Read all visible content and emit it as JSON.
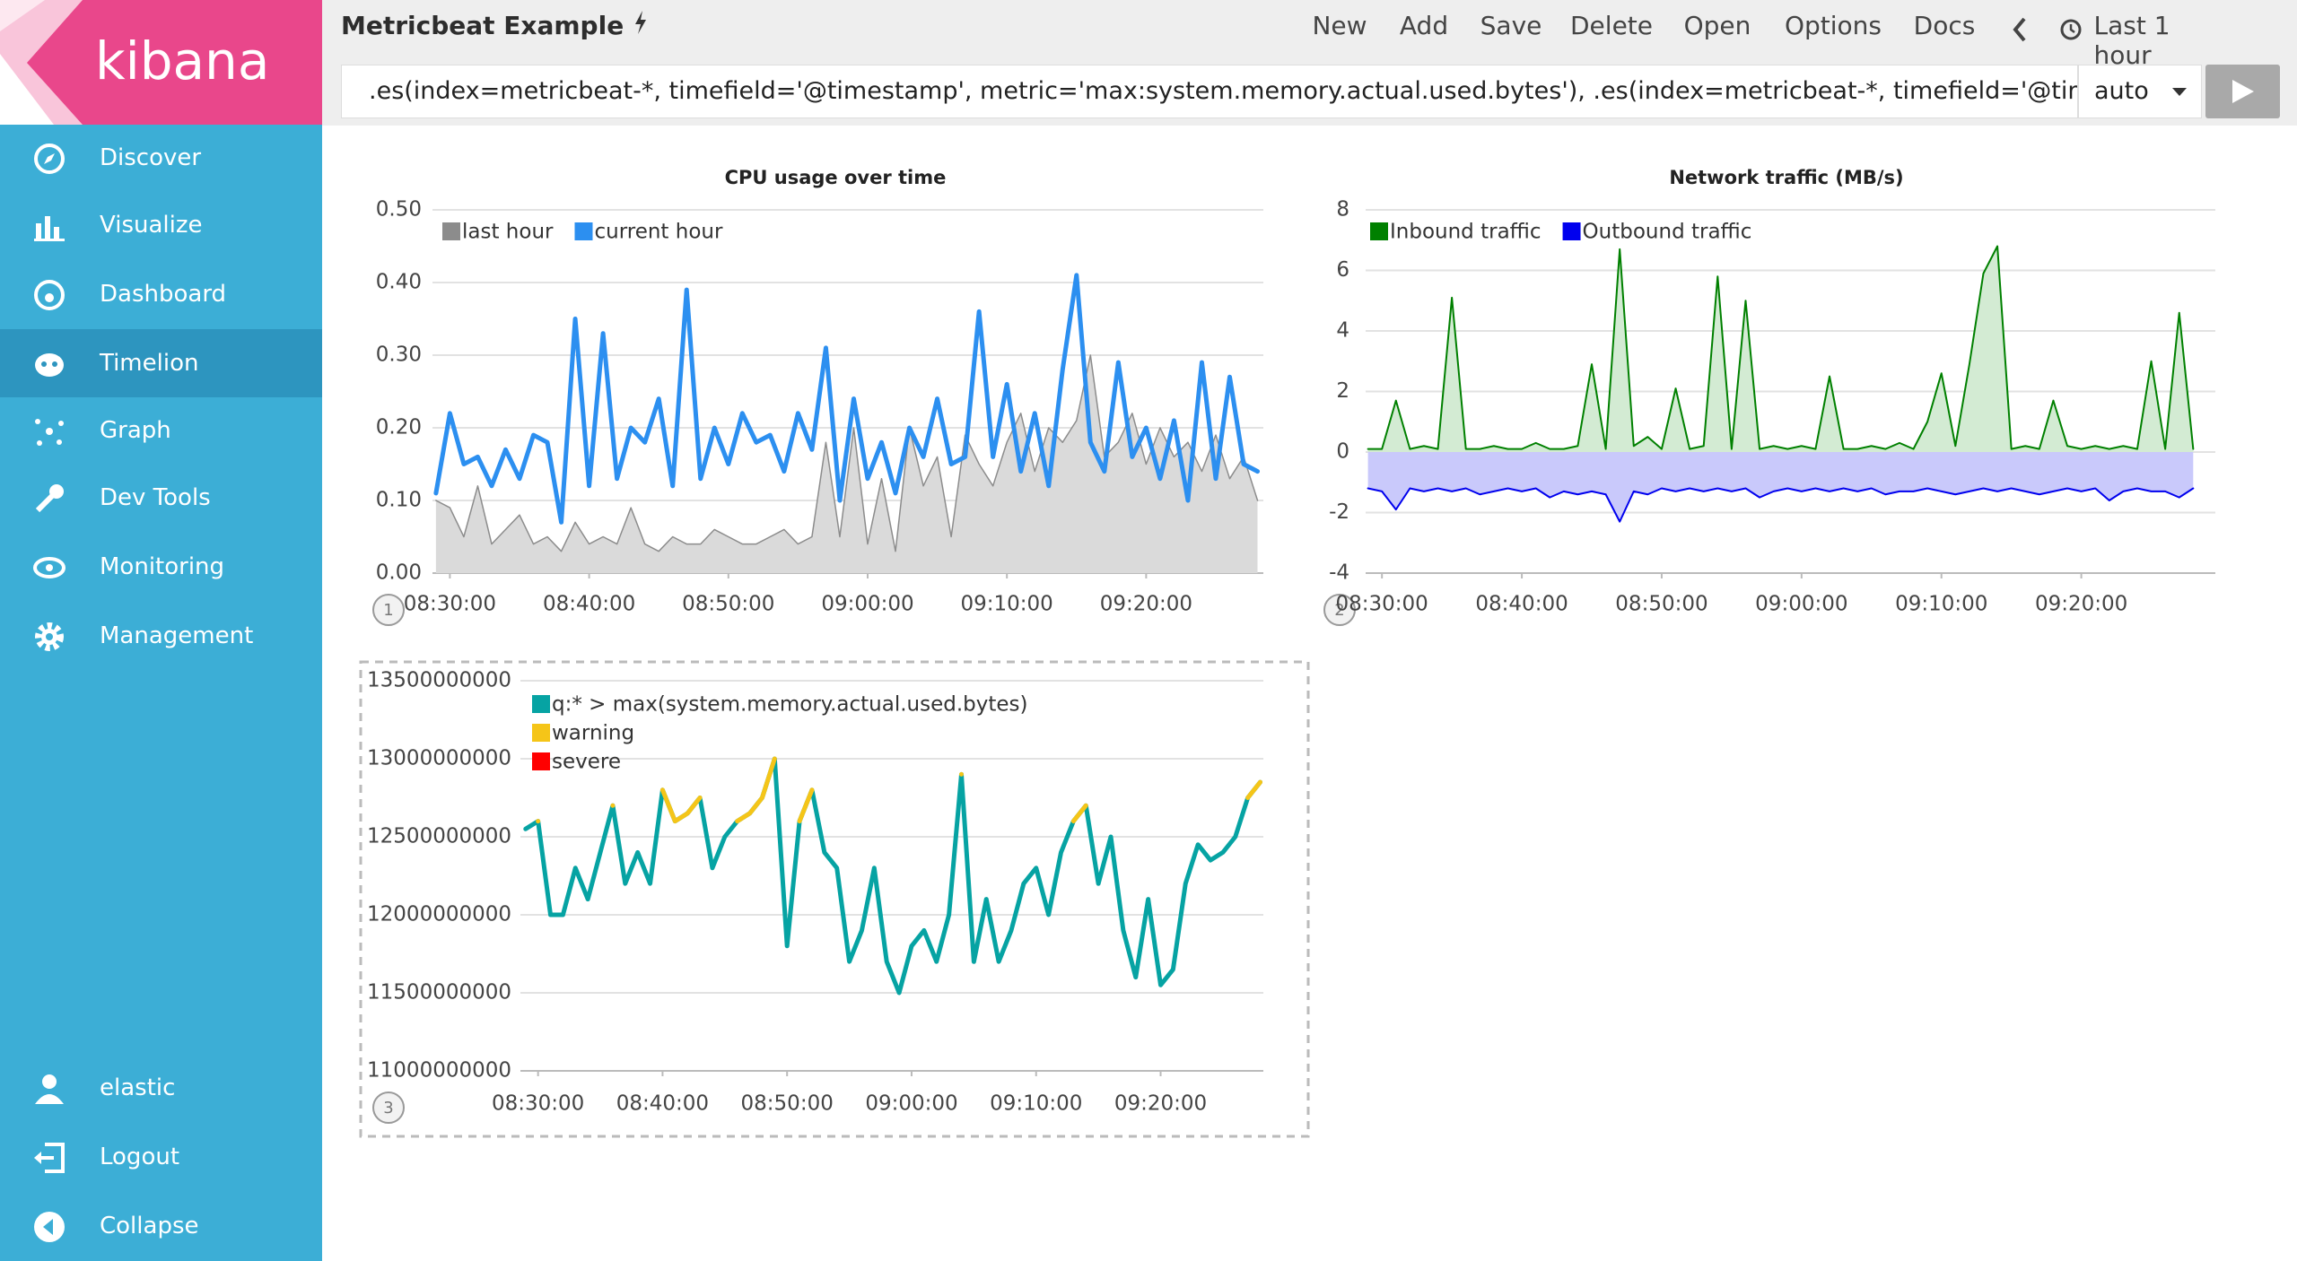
{
  "sidebar": {
    "brand": "kibana",
    "items": [
      "Discover",
      "Visualize",
      "Dashboard",
      "Timelion",
      "Graph",
      "Dev Tools",
      "Monitoring",
      "Management"
    ],
    "footer_items": [
      "elastic",
      "Logout",
      "Collapse"
    ]
  },
  "toolbar": {
    "title": "Metricbeat Example",
    "buttons": [
      "New",
      "Add",
      "Save",
      "Delete",
      "Open",
      "Options",
      "Docs"
    ],
    "time_range": "Last 1 hour",
    "query": ".es(index=metricbeat-*, timefield='@timestamp', metric='max:system.memory.actual.used.bytes'), .es(index=metricbeat-*, timefield='@timestan",
    "interval": "auto"
  },
  "panel_numbers": [
    "1",
    "2",
    "3"
  ],
  "chart_data": [
    {
      "type": "line",
      "title": "CPU usage over time",
      "legend": "top-left",
      "grid": true,
      "x": [
        "08:29:00",
        "08:30:00",
        "08:31:00",
        "08:32:00",
        "08:33:00",
        "08:34:00",
        "08:35:00",
        "08:36:00",
        "08:37:00",
        "08:38:00",
        "08:39:00",
        "08:40:00",
        "08:41:00",
        "08:42:00",
        "08:43:00",
        "08:44:00",
        "08:45:00",
        "08:46:00",
        "08:47:00",
        "08:48:00",
        "08:49:00",
        "08:50:00",
        "08:51:00",
        "08:52:00",
        "08:53:00",
        "08:54:00",
        "08:55:00",
        "08:56:00",
        "08:57:00",
        "08:58:00",
        "08:59:00",
        "09:00:00",
        "09:01:00",
        "09:02:00",
        "09:03:00",
        "09:04:00",
        "09:05:00",
        "09:06:00",
        "09:07:00",
        "09:08:00",
        "09:09:00",
        "09:10:00",
        "09:11:00",
        "09:12:00",
        "09:13:00",
        "09:14:00",
        "09:15:00",
        "09:16:00",
        "09:17:00",
        "09:18:00",
        "09:19:00",
        "09:20:00",
        "09:21:00",
        "09:22:00",
        "09:23:00",
        "09:24:00",
        "09:25:00",
        "09:26:00",
        "09:27:00",
        "09:28:00"
      ],
      "xlim": [
        "08:28:45",
        "09:28:25"
      ],
      "xticks": [
        "08:30:00",
        "08:40:00",
        "08:50:00",
        "09:00:00",
        "09:10:00",
        "09:20:00"
      ],
      "ylim": [
        0,
        0.5
      ],
      "yticks": [
        {
          "value": 0,
          "label": "0.00"
        },
        {
          "value": 0.1,
          "label": "0.10"
        },
        {
          "value": 0.2,
          "label": "0.20"
        },
        {
          "value": 0.3,
          "label": "0.30"
        },
        {
          "value": 0.4,
          "label": "0.40"
        },
        {
          "value": 0.5,
          "label": "0.50"
        }
      ],
      "series": [
        {
          "name": "last hour",
          "color": "#8c8c8c",
          "fill": "#dadada",
          "width": 1.5,
          "values": [
            0.1,
            0.09,
            0.05,
            0.12,
            0.04,
            0.06,
            0.08,
            0.04,
            0.05,
            0.03,
            0.07,
            0.04,
            0.05,
            0.04,
            0.09,
            0.04,
            0.03,
            0.05,
            0.04,
            0.04,
            0.06,
            0.05,
            0.04,
            0.04,
            0.05,
            0.06,
            0.04,
            0.05,
            0.18,
            0.05,
            0.2,
            0.04,
            0.13,
            0.03,
            0.2,
            0.12,
            0.16,
            0.05,
            0.19,
            0.15,
            0.12,
            0.18,
            0.22,
            0.14,
            0.2,
            0.18,
            0.21,
            0.3,
            0.16,
            0.18,
            0.22,
            0.15,
            0.2,
            0.16,
            0.18,
            0.14,
            0.19,
            0.13,
            0.16,
            0.1
          ]
        },
        {
          "name": "current hour",
          "color": "#2c8ff0",
          "width": 5,
          "values": [
            0.11,
            0.22,
            0.15,
            0.16,
            0.12,
            0.17,
            0.13,
            0.19,
            0.18,
            0.07,
            0.35,
            0.12,
            0.33,
            0.13,
            0.2,
            0.18,
            0.24,
            0.12,
            0.39,
            0.13,
            0.2,
            0.15,
            0.22,
            0.18,
            0.19,
            0.14,
            0.22,
            0.17,
            0.31,
            0.1,
            0.24,
            0.13,
            0.18,
            0.11,
            0.2,
            0.16,
            0.24,
            0.15,
            0.16,
            0.36,
            0.16,
            0.26,
            0.14,
            0.22,
            0.12,
            0.28,
            0.41,
            0.18,
            0.14,
            0.29,
            0.16,
            0.2,
            0.13,
            0.21,
            0.1,
            0.29,
            0.13,
            0.27,
            0.15,
            0.14
          ]
        }
      ]
    },
    {
      "type": "line",
      "title": "Network traffic (MB/s)",
      "legend": "top-left",
      "grid": true,
      "x": [
        "08:29:00",
        "08:30:00",
        "08:31:00",
        "08:32:00",
        "08:33:00",
        "08:34:00",
        "08:35:00",
        "08:36:00",
        "08:37:00",
        "08:38:00",
        "08:39:00",
        "08:40:00",
        "08:41:00",
        "08:42:00",
        "08:43:00",
        "08:44:00",
        "08:45:00",
        "08:46:00",
        "08:47:00",
        "08:48:00",
        "08:49:00",
        "08:50:00",
        "08:51:00",
        "08:52:00",
        "08:53:00",
        "08:54:00",
        "08:55:00",
        "08:56:00",
        "08:57:00",
        "08:58:00",
        "08:59:00",
        "09:00:00",
        "09:01:00",
        "09:02:00",
        "09:03:00",
        "09:04:00",
        "09:05:00",
        "09:06:00",
        "09:07:00",
        "09:08:00",
        "09:09:00",
        "09:10:00",
        "09:11:00",
        "09:12:00",
        "09:13:00",
        "09:14:00",
        "09:15:00",
        "09:16:00",
        "09:17:00",
        "09:18:00",
        "09:19:00",
        "09:20:00",
        "09:21:00",
        "09:22:00",
        "09:23:00",
        "09:24:00",
        "09:25:00",
        "09:26:00",
        "09:27:00",
        "09:28:00"
      ],
      "xlim": [
        "08:28:50",
        "09:29:35"
      ],
      "xticks": [
        "08:30:00",
        "08:40:00",
        "08:50:00",
        "09:00:00",
        "09:10:00",
        "09:20:00"
      ],
      "ylim": [
        -4,
        8
      ],
      "yticks": [
        -4,
        -2,
        0,
        2,
        4,
        6,
        8
      ],
      "series": [
        {
          "name": "Inbound traffic",
          "color": "#008000",
          "fill": "#d3ebd3",
          "width": 2,
          "values": [
            0.1,
            0.1,
            1.7,
            0.1,
            0.2,
            0.1,
            5.1,
            0.1,
            0.1,
            0.2,
            0.1,
            0.1,
            0.3,
            0.1,
            0.1,
            0.2,
            2.9,
            0.1,
            6.7,
            0.2,
            0.5,
            0.1,
            2.1,
            0.1,
            0.2,
            5.8,
            0.1,
            5.0,
            0.1,
            0.2,
            0.1,
            0.2,
            0.1,
            2.5,
            0.1,
            0.1,
            0.2,
            0.1,
            0.3,
            0.1,
            1.0,
            2.6,
            0.2,
            2.9,
            5.9,
            6.8,
            0.1,
            0.2,
            0.1,
            1.7,
            0.2,
            0.1,
            0.2,
            0.1,
            0.2,
            0.1,
            3.0,
            0.1,
            4.6,
            0.1
          ]
        },
        {
          "name": "Outbound traffic",
          "color": "#0000ee",
          "fill": "#c9c9fb",
          "width": 2,
          "values": [
            -1.2,
            -1.3,
            -1.9,
            -1.2,
            -1.3,
            -1.2,
            -1.3,
            -1.2,
            -1.4,
            -1.3,
            -1.2,
            -1.3,
            -1.2,
            -1.5,
            -1.3,
            -1.4,
            -1.3,
            -1.4,
            -2.3,
            -1.3,
            -1.4,
            -1.2,
            -1.3,
            -1.2,
            -1.3,
            -1.2,
            -1.3,
            -1.2,
            -1.5,
            -1.3,
            -1.2,
            -1.3,
            -1.2,
            -1.3,
            -1.2,
            -1.3,
            -1.2,
            -1.4,
            -1.3,
            -1.3,
            -1.2,
            -1.3,
            -1.4,
            -1.3,
            -1.2,
            -1.3,
            -1.2,
            -1.3,
            -1.4,
            -1.3,
            -1.2,
            -1.3,
            -1.2,
            -1.6,
            -1.3,
            -1.2,
            -1.3,
            -1.3,
            -1.5,
            -1.2
          ]
        }
      ]
    },
    {
      "type": "line",
      "legend": "top-left",
      "grid": true,
      "x": [
        "08:29:00",
        "08:30:00",
        "08:31:00",
        "08:32:00",
        "08:33:00",
        "08:34:00",
        "08:35:00",
        "08:36:00",
        "08:37:00",
        "08:38:00",
        "08:39:00",
        "08:40:00",
        "08:41:00",
        "08:42:00",
        "08:43:00",
        "08:44:00",
        "08:45:00",
        "08:46:00",
        "08:47:00",
        "08:48:00",
        "08:49:00",
        "08:50:00",
        "08:51:00",
        "08:52:00",
        "08:53:00",
        "08:54:00",
        "08:55:00",
        "08:56:00",
        "08:57:00",
        "08:58:00",
        "08:59:00",
        "09:00:00",
        "09:01:00",
        "09:02:00",
        "09:03:00",
        "09:04:00",
        "09:05:00",
        "09:06:00",
        "09:07:00",
        "09:08:00",
        "09:09:00",
        "09:10:00",
        "09:11:00",
        "09:12:00",
        "09:13:00",
        "09:14:00",
        "09:15:00",
        "09:16:00",
        "09:17:00",
        "09:18:00",
        "09:19:00",
        "09:20:00",
        "09:21:00",
        "09:22:00",
        "09:23:00",
        "09:24:00",
        "09:25:00",
        "09:26:00",
        "09:27:00",
        "09:28:00"
      ],
      "xlim": [
        "08:28:35",
        "09:28:15"
      ],
      "xticks": [
        "08:30:00",
        "08:40:00",
        "08:50:00",
        "09:00:00",
        "09:10:00",
        "09:20:00"
      ],
      "ylim": [
        11000000000,
        13500000000
      ],
      "yticks": [
        11000000000,
        11500000000,
        12000000000,
        12500000000,
        13000000000,
        13500000000
      ],
      "series": [
        {
          "name": "q:* > max(system.memory.actual.used.bytes)",
          "color": "#06a3a3",
          "width": 5,
          "values": [
            12550000000,
            12600000000,
            12000000000,
            12000000000,
            12300000000,
            12100000000,
            12400000000,
            12700000000,
            12200000000,
            12400000000,
            12200000000,
            12800000000,
            12600000000,
            12650000000,
            12750000000,
            12300000000,
            12500000000,
            12600000000,
            12650000000,
            12750000000,
            13000000000,
            11800000000,
            12600000000,
            12800000000,
            12400000000,
            12300000000,
            11700000000,
            11900000000,
            12300000000,
            11700000000,
            11500000000,
            11800000000,
            11900000000,
            11700000000,
            12000000000,
            12900000000,
            11700000000,
            12100000000,
            11700000000,
            11900000000,
            12200000000,
            12300000000,
            12000000000,
            12400000000,
            12600000000,
            12700000000,
            12200000000,
            12500000000,
            11900000000,
            11600000000,
            12100000000,
            11550000000,
            11650000000,
            12200000000,
            12450000000,
            12350000000,
            12400000000,
            12500000000,
            12750000000,
            12850000000
          ]
        },
        {
          "name": "warning",
          "color": "#f5c518",
          "width": 5,
          "values": [
            null,
            12600000000,
            null,
            null,
            null,
            null,
            null,
            12700000000,
            null,
            null,
            null,
            12800000000,
            12600000000,
            12650000000,
            12750000000,
            null,
            null,
            12600000000,
            12650000000,
            12750000000,
            13000000000,
            null,
            12600000000,
            12800000000,
            null,
            null,
            null,
            null,
            null,
            null,
            null,
            null,
            null,
            null,
            null,
            12900000000,
            null,
            null,
            null,
            null,
            null,
            null,
            null,
            null,
            12600000000,
            12700000000,
            null,
            null,
            null,
            null,
            null,
            null,
            null,
            null,
            null,
            null,
            null,
            null,
            12750000000,
            12850000000
          ]
        },
        {
          "name": "severe",
          "color": "#ff0000",
          "width": 5,
          "values": [
            null,
            null,
            null,
            null,
            null,
            null,
            null,
            null,
            null,
            null,
            null,
            null,
            null,
            null,
            null,
            null,
            null,
            null,
            null,
            null,
            null,
            null,
            null,
            null,
            null,
            null,
            null,
            null,
            null,
            null,
            null,
            null,
            null,
            null,
            null,
            null,
            null,
            null,
            null,
            null,
            null,
            null,
            null,
            null,
            null,
            null,
            null,
            null,
            null,
            null,
            null,
            null,
            null,
            null,
            null,
            null,
            null,
            null,
            null,
            null
          ]
        }
      ]
    }
  ]
}
